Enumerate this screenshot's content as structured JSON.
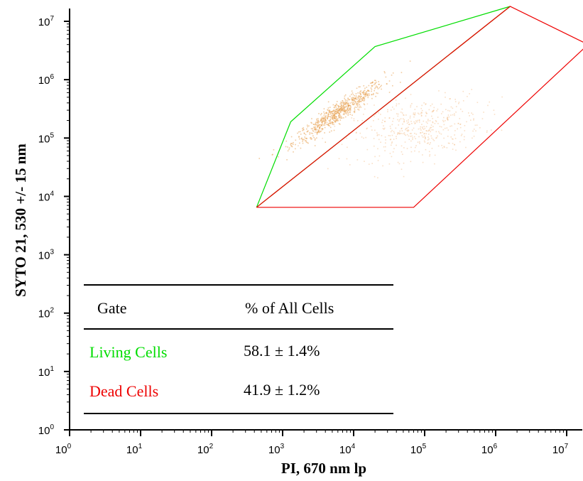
{
  "chart_data": {
    "type": "scatter",
    "xlabel": "PI, 670 nm lp",
    "ylabel": "SYTO 21, 530 +/- 15 nm",
    "xscale": "log",
    "yscale": "log",
    "xlim": [
      1,
      20000000
    ],
    "ylim": [
      1,
      20000000
    ],
    "xticks": [
      {
        "base": "10",
        "exp": "0",
        "value": 1
      },
      {
        "base": "10",
        "exp": "1",
        "value": 10
      },
      {
        "base": "10",
        "exp": "2",
        "value": 100
      },
      {
        "base": "10",
        "exp": "3",
        "value": 1000
      },
      {
        "base": "10",
        "exp": "4",
        "value": 10000
      },
      {
        "base": "10",
        "exp": "5",
        "value": 100000
      },
      {
        "base": "10",
        "exp": "6",
        "value": 1000000
      },
      {
        "base": "10",
        "exp": "7",
        "value": 10000000
      }
    ],
    "yticks": [
      {
        "base": "10",
        "exp": "0",
        "value": 1
      },
      {
        "base": "10",
        "exp": "1",
        "value": 10
      },
      {
        "base": "10",
        "exp": "2",
        "value": 100
      },
      {
        "base": "10",
        "exp": "3",
        "value": 1000
      },
      {
        "base": "10",
        "exp": "4",
        "value": 10000
      },
      {
        "base": "10",
        "exp": "5",
        "value": 100000
      },
      {
        "base": "10",
        "exp": "6",
        "value": 1000000
      },
      {
        "base": "10",
        "exp": "7",
        "value": 10000000
      }
    ],
    "clusters": [
      {
        "center_x": 6000,
        "center_y": 280000,
        "count": 700,
        "color": "#e8a050"
      },
      {
        "center_x": 80000,
        "center_y": 150000,
        "count": 450,
        "color": "#f0b070"
      }
    ],
    "gates": [
      {
        "name": "Living Cells",
        "color": "#00dd00",
        "vertices": [
          [
            430,
            6500
          ],
          [
            1300,
            190000
          ],
          [
            20000,
            3700000
          ],
          [
            1600000,
            18000000
          ],
          [
            430,
            6500
          ]
        ]
      },
      {
        "name": "Dead Cells",
        "color": "#ee0000",
        "vertices": [
          [
            430,
            6500
          ],
          [
            1600000,
            18000000
          ],
          [
            20000000,
            4000000
          ],
          [
            70000,
            6500
          ],
          [
            430,
            6500
          ]
        ]
      }
    ],
    "table": {
      "header_gate": "Gate",
      "header_pct": "% of All Cells",
      "rows": [
        {
          "gate": "Living Cells",
          "pct": "58.1 ± 1.4%",
          "color": "#00dd00"
        },
        {
          "gate": "Dead Cells",
          "pct": "41.9 ± 1.2%",
          "color": "#ee0000"
        }
      ]
    }
  }
}
